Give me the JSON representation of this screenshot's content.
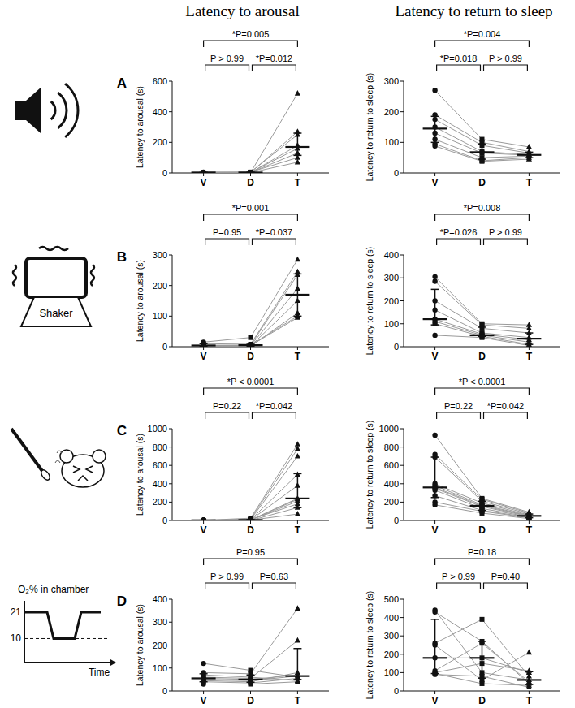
{
  "figure": {
    "column_titles": [
      "Latency to arousal",
      "Latency to return to sleep"
    ],
    "panel_labels": [
      "A",
      "B",
      "C",
      "D"
    ],
    "icons": {
      "shaker_label": "Shaker",
      "o2_label": "O₂% in chamber",
      "o2_ticks": [
        21,
        10
      ],
      "time_label": "Time"
    }
  },
  "chart_data": [
    {
      "type": "scatter",
      "y_label": "Latency to arousal (s)",
      "categories": [
        "V",
        "D",
        "T"
      ],
      "ylim": [
        0,
        600
      ],
      "yticks": [
        0,
        200,
        400,
        600
      ],
      "series": [
        {
          "values": [
            3,
            2,
            520
          ]
        },
        {
          "values": [
            2,
            3,
            270
          ]
        },
        {
          "values": [
            4,
            5,
            250
          ]
        },
        {
          "values": [
            3,
            2,
            180
          ]
        },
        {
          "values": [
            2,
            4,
            160
          ]
        },
        {
          "values": [
            5,
            3,
            130
          ]
        },
        {
          "values": [
            3,
            6,
            100
          ]
        },
        {
          "values": [
            4,
            2,
            70
          ]
        }
      ],
      "median": [
        3,
        3,
        170
      ],
      "iqr_low": [
        2,
        2,
        115
      ],
      "iqr_high": [
        4,
        5,
        260
      ],
      "comparisons": [
        {
          "from": 0,
          "to": 2,
          "label": "*P=0.005"
        },
        {
          "from": 0,
          "to": 1,
          "label": "P > 0.99"
        },
        {
          "from": 1,
          "to": 2,
          "label": "*P=0.012"
        }
      ]
    },
    {
      "type": "scatter",
      "y_label": "Latency to return to sleep (s)",
      "categories": [
        "V",
        "D",
        "T"
      ],
      "ylim": [
        0,
        300
      ],
      "yticks": [
        0,
        100,
        200,
        300
      ],
      "series": [
        {
          "values": [
            270,
            110,
            85
          ]
        },
        {
          "values": [
            190,
            100,
            70
          ]
        },
        {
          "values": [
            175,
            90,
            65
          ]
        },
        {
          "values": [
            150,
            70,
            60
          ]
        },
        {
          "values": [
            130,
            65,
            58
          ]
        },
        {
          "values": [
            110,
            50,
            55
          ]
        },
        {
          "values": [
            95,
            40,
            50
          ]
        },
        {
          "values": [
            88,
            38,
            45
          ]
        }
      ],
      "median": [
        145,
        68,
        59
      ],
      "iqr_low": [
        100,
        45,
        50
      ],
      "iqr_high": [
        185,
        95,
        68
      ],
      "comparisons": [
        {
          "from": 0,
          "to": 2,
          "label": "*P=0.004"
        },
        {
          "from": 0,
          "to": 1,
          "label": "*P=0.018"
        },
        {
          "from": 1,
          "to": 2,
          "label": "P > 0.99"
        }
      ]
    },
    {
      "type": "scatter",
      "y_label": "Latency to arousal (s)",
      "categories": [
        "V",
        "D",
        "T"
      ],
      "ylim": [
        0,
        300
      ],
      "yticks": [
        0,
        100,
        200,
        300
      ],
      "series": [
        {
          "values": [
            15,
            30,
            285
          ]
        },
        {
          "values": [
            10,
            8,
            245
          ]
        },
        {
          "values": [
            5,
            5,
            235
          ]
        },
        {
          "values": [
            3,
            3,
            190
          ]
        },
        {
          "values": [
            2,
            2,
            150
          ]
        },
        {
          "values": [
            0,
            1,
            110
          ]
        },
        {
          "values": [
            1,
            5,
            100
          ]
        },
        {
          "values": [
            4,
            4,
            95
          ]
        }
      ],
      "median": [
        4,
        5,
        170
      ],
      "iqr_low": [
        1,
        2,
        100
      ],
      "iqr_high": [
        10,
        8,
        238
      ],
      "comparisons": [
        {
          "from": 0,
          "to": 2,
          "label": "*P=0.001"
        },
        {
          "from": 0,
          "to": 1,
          "label": "P=0.95"
        },
        {
          "from": 1,
          "to": 2,
          "label": "*P=0.037"
        }
      ]
    },
    {
      "type": "scatter",
      "y_label": "Latency to return to sleep (s)",
      "categories": [
        "V",
        "D",
        "T"
      ],
      "ylim": [
        0,
        400
      ],
      "yticks": [
        0,
        100,
        200,
        300,
        400
      ],
      "series": [
        {
          "values": [
            305,
            100,
            95
          ]
        },
        {
          "values": [
            285,
            95,
            80
          ]
        },
        {
          "values": [
            200,
            80,
            60
          ]
        },
        {
          "values": [
            160,
            60,
            40
          ]
        },
        {
          "values": [
            120,
            55,
            30
          ]
        },
        {
          "values": [
            110,
            50,
            20
          ]
        },
        {
          "values": [
            100,
            45,
            10
          ]
        },
        {
          "values": [
            50,
            40,
            5
          ]
        }
      ],
      "median": [
        120,
        50,
        35
      ],
      "iqr_low": [
        95,
        45,
        10
      ],
      "iqr_high": [
        250,
        85,
        60
      ],
      "comparisons": [
        {
          "from": 0,
          "to": 2,
          "label": "*P=0.008"
        },
        {
          "from": 0,
          "to": 1,
          "label": "*P=0.026"
        },
        {
          "from": 1,
          "to": 2,
          "label": "P > 0.99"
        }
      ]
    },
    {
      "type": "scatter",
      "y_label": "Latency to arousal (s)",
      "categories": [
        "V",
        "D",
        "T"
      ],
      "ylim": [
        0,
        1000
      ],
      "yticks": [
        0,
        200,
        400,
        600,
        800,
        1000
      ],
      "series": [
        {
          "values": [
            2,
            25,
            830
          ]
        },
        {
          "values": [
            3,
            15,
            780
          ]
        },
        {
          "values": [
            1,
            10,
            700
          ]
        },
        {
          "values": [
            2,
            8,
            500
          ]
        },
        {
          "values": [
            4,
            5,
            380
          ]
        },
        {
          "values": [
            2,
            5,
            240
          ]
        },
        {
          "values": [
            3,
            3,
            230
          ]
        },
        {
          "values": [
            1,
            2,
            210
          ]
        },
        {
          "values": [
            2,
            10,
            180
          ]
        },
        {
          "values": [
            3,
            0,
            140
          ]
        },
        {
          "values": [
            2,
            4,
            70
          ]
        }
      ],
      "median": [
        2,
        5,
        240
      ],
      "iqr_low": [
        1,
        3,
        140
      ],
      "iqr_high": [
        3,
        10,
        510
      ],
      "comparisons": [
        {
          "from": 0,
          "to": 2,
          "label": "*P < 0.0001"
        },
        {
          "from": 0,
          "to": 1,
          "label": "P=0.22"
        },
        {
          "from": 1,
          "to": 2,
          "label": "*P=0.042"
        }
      ]
    },
    {
      "type": "scatter",
      "y_label": "Latency to return to sleep (s)",
      "categories": [
        "V",
        "D",
        "T"
      ],
      "ylim": [
        0,
        1000
      ],
      "yticks": [
        0,
        200,
        400,
        600,
        800,
        1000
      ],
      "series": [
        {
          "values": [
            930,
            240,
            90
          ]
        },
        {
          "values": [
            720,
            230,
            80
          ]
        },
        {
          "values": [
            690,
            210,
            70
          ]
        },
        {
          "values": [
            400,
            190,
            60
          ]
        },
        {
          "values": [
            380,
            170,
            55
          ]
        },
        {
          "values": [
            360,
            160,
            50
          ]
        },
        {
          "values": [
            350,
            150,
            45
          ]
        },
        {
          "values": [
            330,
            130,
            40
          ]
        },
        {
          "values": [
            270,
            110,
            35
          ]
        },
        {
          "values": [
            200,
            100,
            30
          ]
        },
        {
          "values": [
            170,
            80,
            20
          ]
        }
      ],
      "median": [
        360,
        160,
        50
      ],
      "iqr_low": [
        250,
        110,
        30
      ],
      "iqr_high": [
        690,
        210,
        70
      ],
      "comparisons": [
        {
          "from": 0,
          "to": 2,
          "label": "*P < 0.0001"
        },
        {
          "from": 0,
          "to": 1,
          "label": "P=0.22"
        },
        {
          "from": 1,
          "to": 2,
          "label": "*P=0.042"
        }
      ]
    },
    {
      "type": "scatter",
      "y_label": "Latency to arousal (s)",
      "categories": [
        "V",
        "D",
        "T"
      ],
      "ylim": [
        0,
        400
      ],
      "yticks": [
        0,
        100,
        200,
        300,
        400
      ],
      "series": [
        {
          "values": [
            120,
            90,
            60
          ]
        },
        {
          "values": [
            80,
            75,
            360
          ]
        },
        {
          "values": [
            70,
            60,
            45
          ]
        },
        {
          "values": [
            60,
            55,
            220
          ]
        },
        {
          "values": [
            55,
            50,
            70
          ]
        },
        {
          "values": [
            50,
            45,
            65
          ]
        },
        {
          "values": [
            45,
            40,
            80
          ]
        },
        {
          "values": [
            40,
            35,
            55
          ]
        },
        {
          "values": [
            30,
            30,
            40
          ]
        }
      ],
      "median": [
        55,
        50,
        65
      ],
      "iqr_low": [
        40,
        38,
        50
      ],
      "iqr_high": [
        75,
        70,
        185
      ],
      "comparisons": [
        {
          "from": 0,
          "to": 2,
          "label": "P=0.95"
        },
        {
          "from": 0,
          "to": 1,
          "label": "P > 0.99"
        },
        {
          "from": 1,
          "to": 2,
          "label": "P=0.63"
        }
      ]
    },
    {
      "type": "scatter",
      "y_label": "Latency to return to sleep (s)",
      "categories": [
        "V",
        "D",
        "T"
      ],
      "ylim": [
        0,
        500
      ],
      "yticks": [
        0,
        100,
        200,
        300,
        400,
        500
      ],
      "series": [
        {
          "values": [
            440,
            100,
            60
          ]
        },
        {
          "values": [
            430,
            270,
            40
          ]
        },
        {
          "values": [
            260,
            390,
            80
          ]
        },
        {
          "values": [
            250,
            60,
            210
          ]
        },
        {
          "values": [
            180,
            180,
            100
          ]
        },
        {
          "values": [
            110,
            260,
            50
          ]
        },
        {
          "values": [
            100,
            150,
            110
          ]
        },
        {
          "values": [
            95,
            40,
            30
          ]
        },
        {
          "values": [
            90,
            80,
            20
          ]
        }
      ],
      "median": [
        180,
        180,
        60
      ],
      "iqr_low": [
        95,
        70,
        35
      ],
      "iqr_high": [
        390,
        270,
        105
      ],
      "comparisons": [
        {
          "from": 0,
          "to": 2,
          "label": "P=0.18"
        },
        {
          "from": 0,
          "to": 1,
          "label": "P > 0.99"
        },
        {
          "from": 1,
          "to": 2,
          "label": "P=0.40"
        }
      ]
    }
  ]
}
